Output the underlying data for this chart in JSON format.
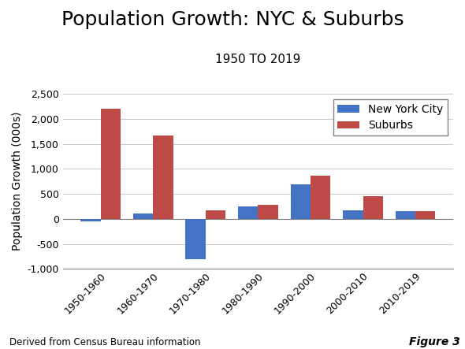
{
  "title": "Population Growth: NYC & Suburbs",
  "subtitle": "1950 TO 2019",
  "ylabel": "Population Growth (000s)",
  "categories": [
    "1950-1960",
    "1960-1970",
    "1970-1980",
    "1980-1990",
    "1990-2000",
    "2000-2010",
    "2010-2019"
  ],
  "nyc_values": [
    -50,
    110,
    -800,
    245,
    685,
    165,
    155
  ],
  "suburbs_values": [
    2200,
    1670,
    175,
    285,
    855,
    455,
    155
  ],
  "nyc_color": "#4472C4",
  "suburbs_color": "#BE4B48",
  "ylim": [
    -1000,
    2500
  ],
  "yticks": [
    -1000,
    -500,
    0,
    500,
    1000,
    1500,
    2000,
    2500
  ],
  "legend_labels": [
    "New York City",
    "Suburbs"
  ],
  "footnote_left": "Derived from Census Bureau information",
  "footnote_right": "Figure 3",
  "background_color": "#FFFFFF",
  "title_fontsize": 18,
  "subtitle_fontsize": 11,
  "ylabel_fontsize": 10,
  "tick_fontsize": 9,
  "legend_fontsize": 10,
  "bar_width": 0.38
}
